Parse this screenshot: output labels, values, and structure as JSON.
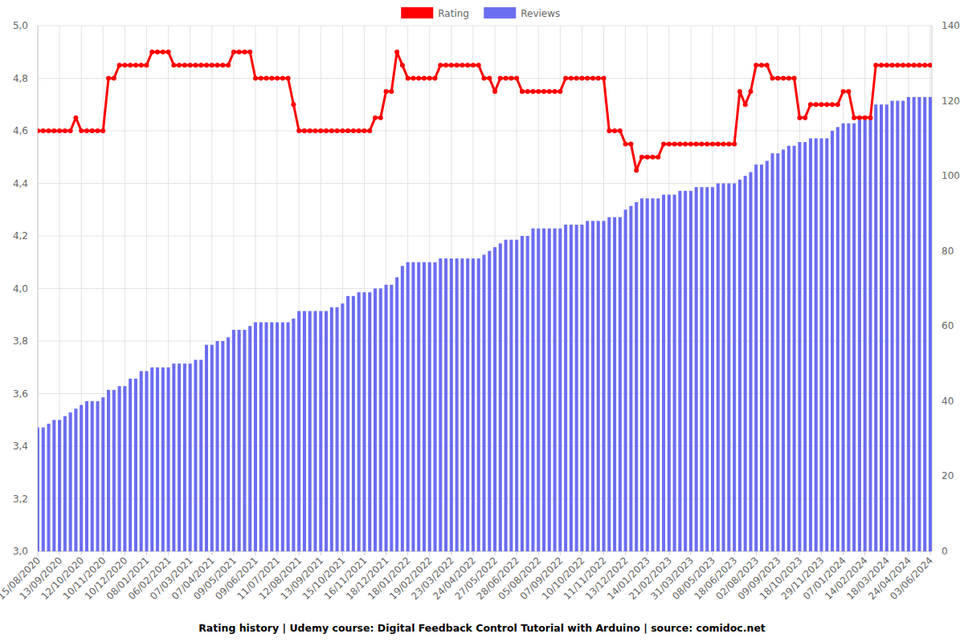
{
  "chart_data": {
    "type": "bar",
    "title": "Rating history | Udemy course: Digital Feedback Control Tutorial with Arduino | source: comidoc.net",
    "categories": [
      "15/08/2020",
      null,
      null,
      null,
      "13/09/2020",
      null,
      null,
      null,
      "12/10/2020",
      null,
      null,
      null,
      "10/11/2020",
      null,
      null,
      null,
      "10/12/2020",
      null,
      null,
      null,
      "08/01/2021",
      null,
      null,
      null,
      "06/02/2021",
      null,
      null,
      null,
      "07/03/2021",
      null,
      null,
      null,
      "07/04/2021",
      null,
      null,
      null,
      "09/05/2021",
      null,
      null,
      null,
      "09/06/2021",
      null,
      null,
      null,
      "11/07/2021",
      null,
      null,
      null,
      "12/08/2021",
      null,
      null,
      null,
      "13/09/2021",
      null,
      null,
      null,
      "15/10/2021",
      null,
      null,
      null,
      "16/11/2021",
      null,
      null,
      null,
      "18/12/2021",
      null,
      null,
      null,
      "18/01/2022",
      null,
      null,
      null,
      "19/02/2022",
      null,
      null,
      null,
      "23/03/2022",
      null,
      null,
      null,
      "24/04/2022",
      null,
      null,
      null,
      "27/05/2022",
      null,
      null,
      null,
      "28/06/2022",
      null,
      null,
      null,
      "05/08/2022",
      null,
      null,
      null,
      "07/09/2022",
      null,
      null,
      null,
      "10/10/2022",
      null,
      null,
      null,
      "11/11/2022",
      null,
      null,
      null,
      "13/12/2022",
      null,
      null,
      null,
      "14/01/2023",
      null,
      null,
      null,
      "21/02/2023",
      null,
      null,
      null,
      "31/03/2023",
      null,
      null,
      null,
      "08/05/2023",
      null,
      null,
      null,
      "18/06/2023",
      null,
      null,
      null,
      "02/08/2023",
      null,
      null,
      null,
      "09/09/2023",
      null,
      null,
      null,
      "18/10/2023",
      null,
      null,
      null,
      "29/11/2023",
      null,
      null,
      null,
      "07/01/2024",
      null,
      null,
      null,
      "14/02/2024",
      null,
      null,
      null,
      "18/03/2024",
      null,
      null,
      null,
      "24/04/2024",
      null,
      null,
      null,
      "03/06/2024"
    ],
    "series": [
      {
        "name": "Rating",
        "type": "line",
        "color": "#ff0000",
        "marker": "circle",
        "axis": "y",
        "values": [
          4.6,
          4.6,
          4.6,
          4.6,
          4.6,
          4.6,
          4.6,
          4.65,
          4.6,
          4.6,
          4.6,
          4.6,
          4.6,
          4.8,
          4.8,
          4.85,
          4.85,
          4.85,
          4.85,
          4.85,
          4.85,
          4.9,
          4.9,
          4.9,
          4.9,
          4.85,
          4.85,
          4.85,
          4.85,
          4.85,
          4.85,
          4.85,
          4.85,
          4.85,
          4.85,
          4.85,
          4.9,
          4.9,
          4.9,
          4.9,
          4.8,
          4.8,
          4.8,
          4.8,
          4.8,
          4.8,
          4.8,
          4.7,
          4.6,
          4.6,
          4.6,
          4.6,
          4.6,
          4.6,
          4.6,
          4.6,
          4.6,
          4.6,
          4.6,
          4.6,
          4.6,
          4.6,
          4.65,
          4.65,
          4.75,
          4.75,
          4.9,
          4.85,
          4.8,
          4.8,
          4.8,
          4.8,
          4.8,
          4.8,
          4.85,
          4.85,
          4.85,
          4.85,
          4.85,
          4.85,
          4.85,
          4.85,
          4.8,
          4.8,
          4.75,
          4.8,
          4.8,
          4.8,
          4.8,
          4.75,
          4.75,
          4.75,
          4.75,
          4.75,
          4.75,
          4.75,
          4.75,
          4.8,
          4.8,
          4.8,
          4.8,
          4.8,
          4.8,
          4.8,
          4.8,
          4.6,
          4.6,
          4.6,
          4.55,
          4.55,
          4.45,
          4.5,
          4.5,
          4.5,
          4.5,
          4.55,
          4.55,
          4.55,
          4.55,
          4.55,
          4.55,
          4.55,
          4.55,
          4.55,
          4.55,
          4.55,
          4.55,
          4.55,
          4.55,
          4.75,
          4.7,
          4.75,
          4.85,
          4.85,
          4.85,
          4.8,
          4.8,
          4.8,
          4.8,
          4.8,
          4.65,
          4.65,
          4.7,
          4.7,
          4.7,
          4.7,
          4.7,
          4.7,
          4.75,
          4.75,
          4.65,
          4.65,
          4.65,
          4.65,
          4.85,
          4.85,
          4.85,
          4.85,
          4.85,
          4.85,
          4.85,
          4.85,
          4.85,
          4.85,
          4.85
        ]
      },
      {
        "name": "Reviews",
        "type": "bar",
        "color": "#6b6ef0",
        "axis": "y2",
        "values": [
          33,
          33,
          34,
          35,
          35,
          36,
          37,
          38,
          39,
          40,
          40,
          40,
          41,
          43,
          43,
          44,
          44,
          46,
          46,
          48,
          48,
          49,
          49,
          49,
          49,
          50,
          50,
          50,
          50,
          51,
          51,
          55,
          55,
          56,
          56,
          57,
          59,
          59,
          59,
          60,
          61,
          61,
          61,
          61,
          61,
          61,
          61,
          62,
          64,
          64,
          64,
          64,
          64,
          64,
          65,
          65,
          66,
          68,
          68,
          69,
          69,
          69,
          70,
          70,
          71,
          71,
          73,
          76,
          77,
          77,
          77,
          77,
          77,
          77,
          78,
          78,
          78,
          78,
          78,
          78,
          78,
          78,
          79,
          80,
          81,
          82,
          83,
          83,
          83,
          84,
          84,
          86,
          86,
          86,
          86,
          86,
          86,
          87,
          87,
          87,
          87,
          88,
          88,
          88,
          88,
          89,
          89,
          89,
          91,
          92,
          93,
          94,
          94,
          94,
          94,
          95,
          95,
          95,
          96,
          96,
          96,
          97,
          97,
          97,
          97,
          98,
          98,
          98,
          98,
          99,
          100,
          101,
          103,
          103,
          104,
          106,
          106,
          107,
          108,
          108,
          109,
          109,
          110,
          110,
          110,
          110,
          112,
          113,
          114,
          114,
          114,
          116,
          116,
          116,
          119,
          119,
          119,
          120,
          120,
          120,
          121,
          121,
          121,
          121,
          121
        ]
      }
    ],
    "ylim": [
      3,
      5
    ],
    "yticks": [
      {
        "value": 3,
        "label": "3,0"
      },
      {
        "value": 3.2,
        "label": "3,2"
      },
      {
        "value": 3.4,
        "label": "3,4"
      },
      {
        "value": 3.6,
        "label": "3,6"
      },
      {
        "value": 3.8,
        "label": "3,8"
      },
      {
        "value": 4,
        "label": "4,0"
      },
      {
        "value": 4.2,
        "label": "4,2"
      },
      {
        "value": 4.4,
        "label": "4,4"
      },
      {
        "value": 4.6,
        "label": "4,6"
      },
      {
        "value": 4.8,
        "label": "4,8"
      },
      {
        "value": 5,
        "label": "5,0"
      }
    ],
    "y2lim": [
      0,
      140
    ],
    "y2ticks": [
      0,
      20,
      40,
      60,
      80,
      100,
      120,
      140
    ],
    "grid": true,
    "legend": "top"
  }
}
